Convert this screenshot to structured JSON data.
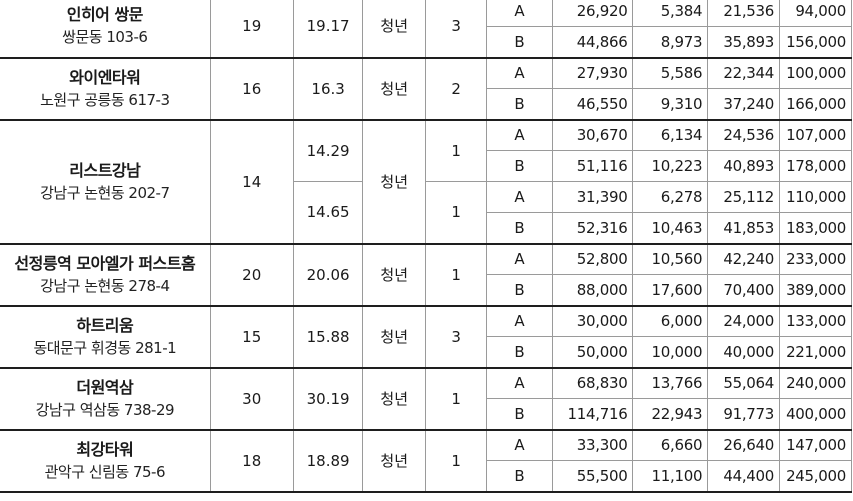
{
  "groups": [
    {
      "name": "인히어 쌍문",
      "address": "쌍문동 103-6",
      "households": "19",
      "rows": [
        {
          "area": "19.17",
          "type": "청년",
          "count": "3",
          "sub": [
            {
              "label": "A",
              "v1": "26,920",
              "v2": "5,384",
              "v3": "21,536",
              "v4": "94,000"
            },
            {
              "label": "B",
              "v1": "44,866",
              "v2": "8,973",
              "v3": "35,893",
              "v4": "156,000"
            }
          ]
        }
      ]
    },
    {
      "name": "와이엔타워",
      "address": "노원구 공릉동 617-3",
      "households": "16",
      "rows": [
        {
          "area": "16.3",
          "type": "청년",
          "count": "2",
          "sub": [
            {
              "label": "A",
              "v1": "27,930",
              "v2": "5,586",
              "v3": "22,344",
              "v4": "100,000"
            },
            {
              "label": "B",
              "v1": "46,550",
              "v2": "9,310",
              "v3": "37,240",
              "v4": "166,000"
            }
          ]
        }
      ]
    },
    {
      "name": "리스트강남",
      "address": "강남구 논현동 202-7",
      "households": "14",
      "type": "청년",
      "rows": [
        {
          "area": "14.29",
          "count": "1",
          "sub": [
            {
              "label": "A",
              "v1": "30,670",
              "v2": "6,134",
              "v3": "24,536",
              "v4": "107,000"
            },
            {
              "label": "B",
              "v1": "51,116",
              "v2": "10,223",
              "v3": "40,893",
              "v4": "178,000"
            }
          ]
        },
        {
          "area": "14.65",
          "count": "1",
          "sub": [
            {
              "label": "A",
              "v1": "31,390",
              "v2": "6,278",
              "v3": "25,112",
              "v4": "110,000"
            },
            {
              "label": "B",
              "v1": "52,316",
              "v2": "10,463",
              "v3": "41,853",
              "v4": "183,000"
            }
          ]
        }
      ]
    },
    {
      "name": "선정릉역 모아엘가 퍼스트홈",
      "address": "강남구 논현동 278-4",
      "households": "20",
      "rows": [
        {
          "area": "20.06",
          "type": "청년",
          "count": "1",
          "sub": [
            {
              "label": "A",
              "v1": "52,800",
              "v2": "10,560",
              "v3": "42,240",
              "v4": "233,000"
            },
            {
              "label": "B",
              "v1": "88,000",
              "v2": "17,600",
              "v3": "70,400",
              "v4": "389,000"
            }
          ]
        }
      ]
    },
    {
      "name": "하트리움",
      "address": "동대문구 휘경동 281-1",
      "households": "15",
      "rows": [
        {
          "area": "15.88",
          "type": "청년",
          "count": "3",
          "sub": [
            {
              "label": "A",
              "v1": "30,000",
              "v2": "6,000",
              "v3": "24,000",
              "v4": "133,000"
            },
            {
              "label": "B",
              "v1": "50,000",
              "v2": "10,000",
              "v3": "40,000",
              "v4": "221,000"
            }
          ]
        }
      ]
    },
    {
      "name": "더원역삼",
      "address": "강남구 역삼동 738-29",
      "households": "30",
      "rows": [
        {
          "area": "30.19",
          "type": "청년",
          "count": "1",
          "sub": [
            {
              "label": "A",
              "v1": "68,830",
              "v2": "13,766",
              "v3": "55,064",
              "v4": "240,000"
            },
            {
              "label": "B",
              "v1": "114,716",
              "v2": "22,943",
              "v3": "91,773",
              "v4": "400,000"
            }
          ]
        }
      ]
    },
    {
      "name": "최강타워",
      "address": "관악구 신림동 75-6",
      "households": "18",
      "rows": [
        {
          "area": "18.89",
          "type": "청년",
          "count": "1",
          "sub": [
            {
              "label": "A",
              "v1": "33,300",
              "v2": "6,660",
              "v3": "26,640",
              "v4": "147,000"
            },
            {
              "label": "B",
              "v1": "55,500",
              "v2": "11,100",
              "v3": "44,400",
              "v4": "245,000"
            }
          ]
        }
      ]
    }
  ]
}
